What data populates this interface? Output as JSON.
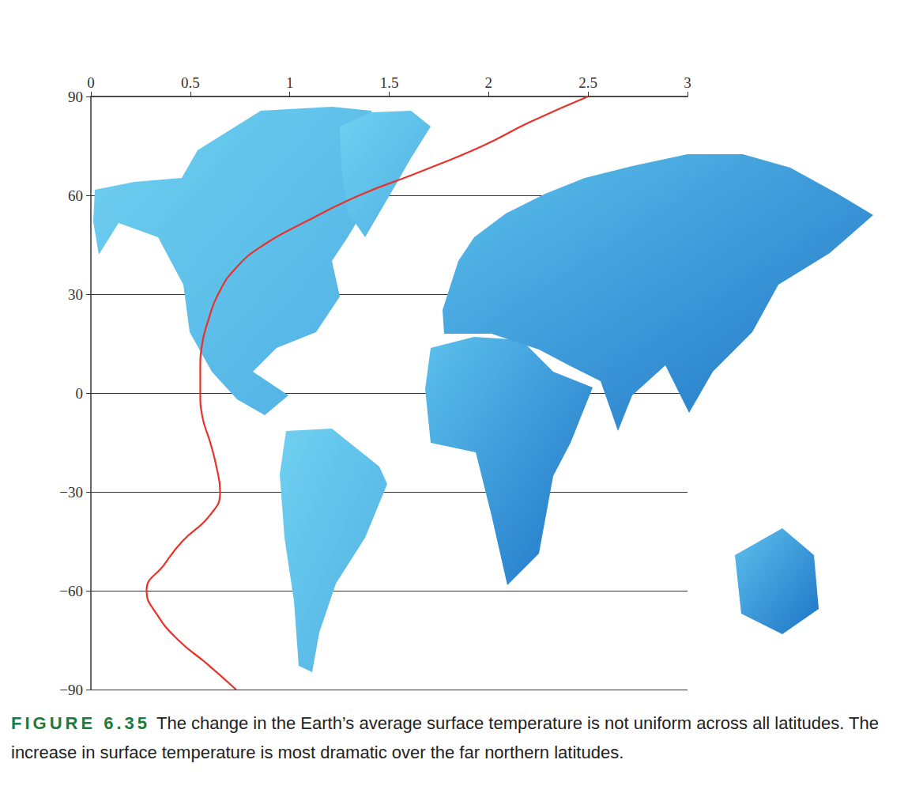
{
  "chart_data": {
    "type": "line",
    "figure_label": "FIGURE 6.35",
    "caption": "The change in the Earth’s average surface temperature is not uniform across all latitudes. The increase in surface temperature is most dramatic over the far northern latitudes.",
    "x": [
      0.73,
      0.58,
      0.44,
      0.33,
      0.28,
      0.37,
      0.46,
      0.6,
      0.65,
      0.63,
      0.6,
      0.56,
      0.55,
      0.55,
      0.56,
      0.59,
      0.64,
      0.73,
      0.87,
      1.08,
      1.35,
      1.65,
      1.97,
      2.2,
      2.5
    ],
    "y": [
      -90,
      -82,
      -75,
      -67,
      -60,
      -52,
      -45,
      -37,
      -30,
      -22,
      -15,
      -7,
      0,
      7,
      15,
      22,
      30,
      38,
      45,
      52,
      60,
      67,
      75,
      82,
      90
    ],
    "color": "#e8322a",
    "marker": "none",
    "line_style": "solid",
    "xlim": [
      0,
      3
    ],
    "xticks": [
      0,
      0.5,
      1,
      1.5,
      2,
      2.5,
      3
    ],
    "ylim": [
      -90,
      90
    ],
    "yticks": [
      {
        "value": -90,
        "label": "−90"
      },
      {
        "value": -60,
        "label": "−60"
      },
      {
        "value": -30,
        "label": "−30"
      },
      0,
      30,
      60,
      90
    ],
    "grid": true
  }
}
